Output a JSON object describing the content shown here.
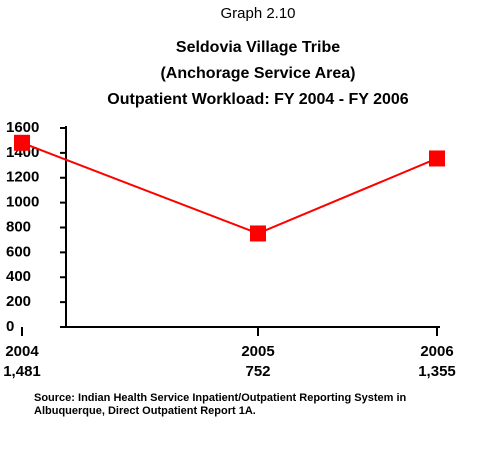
{
  "chart_data": {
    "type": "line",
    "header": "Graph 2.10",
    "title": [
      "Seldovia Village Tribe",
      "(Anchorage Service Area)",
      "Outpatient Workload:  FY 2004 - FY 2006"
    ],
    "categories": [
      "2004",
      "2005",
      "2006"
    ],
    "series": [
      {
        "name": "Outpatient Workload",
        "color": "#ff0000",
        "values": [
          1481,
          752,
          1355
        ],
        "value_labels": [
          "1,481",
          "752",
          "1,355"
        ]
      }
    ],
    "ylim": [
      0,
      1600
    ],
    "yticks": [
      0,
      200,
      400,
      600,
      800,
      1000,
      1200,
      1400,
      1600
    ],
    "source": "Source: Indian Health Service Inpatient/Outpatient Reporting System in Albuquerque, Direct Outpatient Report 1A."
  }
}
